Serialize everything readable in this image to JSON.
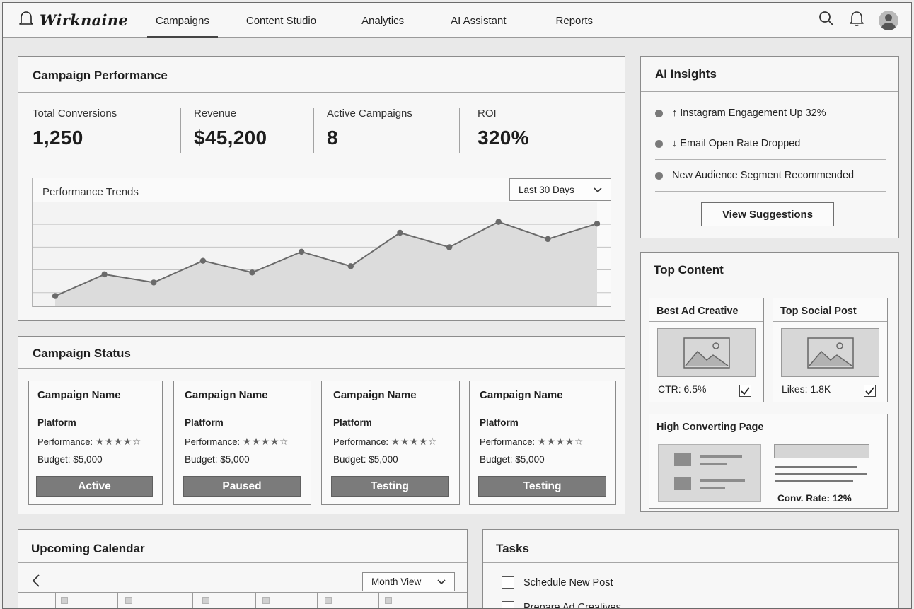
{
  "app": {
    "logo_text": "Wirknaine"
  },
  "nav": {
    "items": [
      {
        "label": "Campaigns",
        "active": true
      },
      {
        "label": "Content Studio",
        "active": false
      },
      {
        "label": "Analytics",
        "active": false
      },
      {
        "label": "AI Assistant",
        "active": false
      },
      {
        "label": "Reports",
        "active": false
      }
    ],
    "icons": [
      "search-icon",
      "bell-icon",
      "avatar"
    ]
  },
  "performance": {
    "title": "Campaign Performance",
    "kpis": [
      {
        "label": "Total Conversions",
        "value": "1,250"
      },
      {
        "label": "Revenue",
        "value": "$45,200"
      },
      {
        "label": "Active Campaigns",
        "value": "8"
      },
      {
        "label": "ROI",
        "value": "320%"
      }
    ],
    "trends_title": "Performance Trends",
    "range_select": "Last 30 Days"
  },
  "chart_data": {
    "type": "area",
    "title": "Performance Trends",
    "xlabel": "",
    "ylabel": "",
    "x": [
      1,
      2,
      3,
      4,
      5,
      6,
      7,
      8,
      9,
      10,
      11,
      12
    ],
    "values": [
      5,
      29,
      20,
      44,
      31,
      54,
      38,
      75,
      59,
      87,
      68,
      85
    ],
    "ylim": [
      0,
      100
    ],
    "grid": true,
    "legend": "none"
  },
  "ai_insights": {
    "title": "AI Insights",
    "items": [
      "↑ Instagram Engagement Up 32%",
      "↓ Email Open Rate Dropped",
      "New Audience Segment Recommended"
    ],
    "button_label": "View Suggestions"
  },
  "top_content": {
    "title": "Top Content",
    "best_ad": {
      "title": "Best Ad Creative",
      "metric": "CTR: 6.5%",
      "checked": true
    },
    "top_social": {
      "title": "Top Social Post",
      "metric": "Likes: 1.8K",
      "checked": true
    },
    "high_page": {
      "title": "High Converting Page",
      "metric": "Conv. Rate: 12%"
    }
  },
  "campaign_status": {
    "title": "Campaign Status",
    "cards": [
      {
        "name": "Campaign Name",
        "platform": "Platform",
        "perf_label": "Performance:",
        "stars": "★★★★☆",
        "budget": "Budget: $5,000",
        "status": "Active"
      },
      {
        "name": "Campaign Name",
        "platform": "Platform",
        "perf_label": "Performance:",
        "stars": "★★★★☆",
        "budget": "Budget: $5,000",
        "status": "Paused"
      },
      {
        "name": "Campaign Name",
        "platform": "Platform",
        "perf_label": "Performance:",
        "stars": "★★★★☆",
        "budget": "Budget: $5,000",
        "status": "Testing"
      },
      {
        "name": "Campaign Name",
        "platform": "Platform",
        "perf_label": "Performance:",
        "stars": "★★★★☆",
        "budget": "Budget: $5,000",
        "status": "Testing"
      }
    ]
  },
  "calendar": {
    "title": "Upcoming Calendar",
    "view_select": "Month View"
  },
  "tasks": {
    "title": "Tasks",
    "items": [
      {
        "label": "Schedule New Post",
        "checked": false
      },
      {
        "label": "Prepare Ad Creatives",
        "checked": false
      }
    ]
  }
}
